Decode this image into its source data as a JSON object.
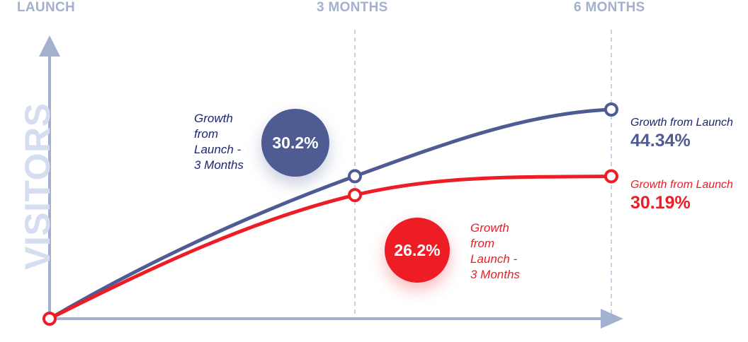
{
  "chart_data": {
    "type": "line",
    "x_labels": [
      "LAUNCH",
      "3 MONTHS",
      "6 MONTHS"
    ],
    "ylabel": "VISITORS",
    "series": [
      {
        "key": "blue",
        "color": "#4f5c94",
        "values": [
          0,
          30.2,
          44.34
        ]
      },
      {
        "key": "red",
        "color": "#ee1c25",
        "values": [
          0,
          26.2,
          30.19
        ]
      }
    ],
    "ylim": [
      0,
      65
    ],
    "grid": {
      "vertical_dashed": true,
      "horizontal": false
    },
    "annotations": {
      "blue_bubble": {
        "value": "30.2%",
        "text": "Growth\nfrom\nLaunch -\n3 Months"
      },
      "red_bubble": {
        "value": "26.2%",
        "text": "Growth\nfrom\nLaunch -\n3 Months"
      },
      "blue_end": {
        "caption": "Growth from Launch",
        "value": "44.34%"
      },
      "red_end": {
        "caption": "Growth from Launch",
        "value": "30.19%"
      }
    }
  },
  "colors": {
    "axis": "#a3b1cf",
    "blue": "#4f5c94",
    "red": "#ee1c25",
    "label_navy": "#1c2670"
  }
}
